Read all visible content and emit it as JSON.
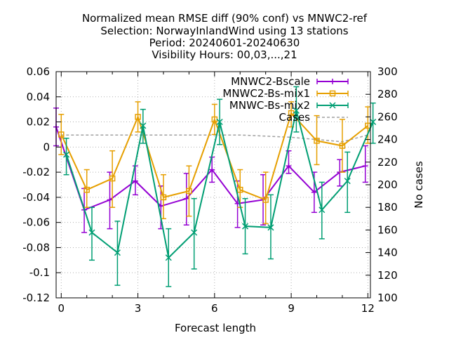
{
  "chart_data": {
    "type": "line",
    "title_lines": [
      "Normalized mean RMSE diff (90% conf) vs MNWC2-ref",
      "Selection: NorwayInlandWind using    13 stations",
      "Period: 20240601-20240630",
      "Visibility   Hours: 00,03,...,21"
    ],
    "xlabel": "Forecast length",
    "ylabel": "",
    "y2label": "No cases",
    "xlim": [
      -0.2,
      12.1
    ],
    "ylim": [
      -0.12,
      0.06
    ],
    "y2lim": [
      100,
      300
    ],
    "x_ticks": [
      0,
      3,
      6,
      9,
      12
    ],
    "y_ticks": [
      -0.12,
      -0.1,
      -0.08,
      -0.06,
      -0.04,
      -0.02,
      0,
      0.02,
      0.04,
      0.06
    ],
    "y_tick_labels": [
      "-0.12",
      "-0.1",
      "-0.08",
      "-0.06",
      "-0.04",
      "-0.02",
      "0",
      "0.02",
      "0.04",
      "0.06"
    ],
    "y2_ticks": [
      100,
      120,
      140,
      160,
      180,
      200,
      220,
      240,
      260,
      280,
      300
    ],
    "grid": true,
    "legend_position": "top-right",
    "series": [
      {
        "name": "MNWC2-Bscale",
        "color": "#9400d3",
        "marker": "plus",
        "x": [
          -0.2,
          0.9,
          1.9,
          2.9,
          3.9,
          4.9,
          5.9,
          6.9,
          7.9,
          8.9,
          9.9,
          10.9,
          11.9
        ],
        "values": [
          0.016,
          -0.05,
          -0.042,
          -0.027,
          -0.047,
          -0.041,
          -0.018,
          -0.045,
          -0.042,
          -0.015,
          -0.036,
          -0.02,
          -0.015
        ],
        "error_low": [
          0.001,
          -0.068,
          -0.065,
          -0.038,
          -0.065,
          -0.062,
          -0.028,
          -0.064,
          -0.062,
          -0.021,
          -0.052,
          -0.031,
          -0.028
        ],
        "error_high": [
          0.031,
          -0.033,
          -0.02,
          -0.015,
          -0.031,
          -0.021,
          -0.008,
          -0.027,
          -0.022,
          -0.003,
          -0.02,
          -0.01,
          0.001
        ]
      },
      {
        "name": "MNWC2-Bs-mix1",
        "color": "#e69f00",
        "marker": "square",
        "x": [
          0.0,
          1.0,
          2.0,
          3.0,
          4.0,
          5.0,
          6.0,
          7.0,
          8.0,
          9.0,
          10.0,
          11.0,
          12.0
        ],
        "values": [
          0.01,
          -0.034,
          -0.025,
          0.024,
          -0.04,
          -0.035,
          0.022,
          -0.034,
          -0.042,
          0.027,
          0.005,
          0.001,
          0.017
        ],
        "error_low": [
          -0.006,
          -0.048,
          -0.048,
          0.012,
          -0.057,
          -0.055,
          0.01,
          -0.048,
          -0.061,
          0.016,
          -0.014,
          -0.02,
          0.003
        ],
        "error_high": [
          0.026,
          -0.018,
          -0.003,
          0.036,
          -0.022,
          -0.015,
          0.034,
          -0.018,
          -0.02,
          0.036,
          0.025,
          0.022,
          0.032
        ]
      },
      {
        "name": "MNWC-Bs-mix2",
        "color": "#009e73",
        "marker": "x",
        "x": [
          0.2,
          1.2,
          2.2,
          3.2,
          4.2,
          5.2,
          6.2,
          7.2,
          8.2,
          9.2,
          10.2,
          11.2,
          12.2
        ],
        "values": [
          -0.006,
          -0.068,
          -0.084,
          0.017,
          -0.088,
          -0.068,
          0.02,
          -0.063,
          -0.064,
          0.029,
          -0.05,
          -0.027,
          0.02
        ],
        "error_low": [
          -0.022,
          -0.09,
          -0.11,
          0.003,
          -0.111,
          -0.097,
          0.002,
          -0.085,
          -0.089,
          0.012,
          -0.073,
          -0.052,
          0.003
        ],
        "error_high": [
          0.007,
          -0.048,
          -0.059,
          0.03,
          -0.065,
          -0.041,
          0.038,
          -0.041,
          -0.038,
          0.048,
          -0.028,
          -0.004,
          0.035
        ]
      },
      {
        "name": "Cases",
        "color": "#a0a0a0",
        "axis": "y2",
        "style": "dashed",
        "x": [
          0,
          1,
          2,
          3,
          4,
          5,
          6,
          7,
          8,
          9,
          10,
          11,
          12
        ],
        "values": [
          244,
          244,
          244,
          244,
          244,
          244,
          244,
          244,
          243,
          242,
          240,
          238,
          244
        ]
      }
    ]
  }
}
